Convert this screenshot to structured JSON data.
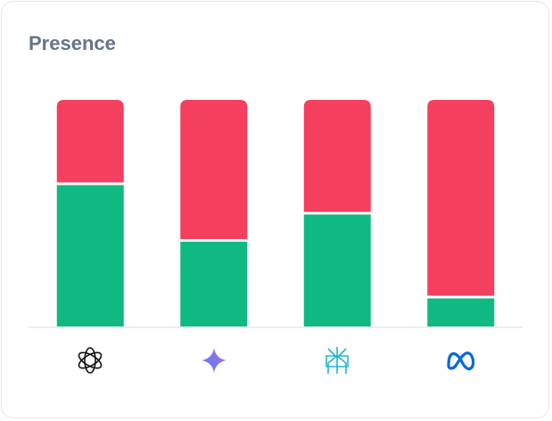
{
  "chart_data": {
    "type": "stacked_bar",
    "title": "Presence",
    "categories": [
      null,
      null,
      null,
      null
    ],
    "series": [
      {
        "color": "#10b981",
        "values": [
          63,
          38,
          50,
          13
        ]
      },
      {
        "color": "#f43f5e",
        "values": [
          37,
          62,
          50,
          87
        ]
      }
    ],
    "ylim": [
      0,
      100
    ]
  }
}
